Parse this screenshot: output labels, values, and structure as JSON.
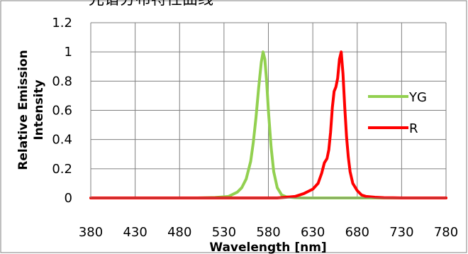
{
  "page_title": "光谱分布特性曲线",
  "chart_data": {
    "type": "line",
    "xlabel": "Wavelength  [nm]",
    "ylabel": "Relative Emission Intensity",
    "ylabel_lines": [
      "Relative Emission",
      "Intensity"
    ],
    "xlim": [
      380,
      780
    ],
    "ylim": [
      0,
      1.2
    ],
    "x_ticks": [
      "380",
      "430",
      "480",
      "530",
      "580",
      "630",
      "680",
      "730",
      "780"
    ],
    "y_ticks": [
      "0",
      "0.2",
      "0.4",
      "0.6",
      "0.8",
      "1",
      "1.2"
    ],
    "grid": true,
    "legend_position": "right",
    "series": [
      {
        "name": "YG",
        "color": "#92D050",
        "x": [
          380,
          500,
          520,
          535,
          545,
          550,
          555,
          560,
          563,
          566,
          569,
          572,
          574,
          576,
          578,
          580,
          583,
          586,
          590,
          595,
          600,
          610,
          620,
          780
        ],
        "y": [
          0,
          0,
          0.003,
          0.01,
          0.04,
          0.07,
          0.13,
          0.25,
          0.38,
          0.55,
          0.75,
          0.93,
          1.0,
          0.95,
          0.8,
          0.6,
          0.35,
          0.18,
          0.07,
          0.02,
          0.008,
          0.002,
          0,
          0
        ]
      },
      {
        "name": "R",
        "color": "#FF0000",
        "x": [
          380,
          590,
          600,
          610,
          620,
          630,
          636,
          640,
          643,
          646,
          648,
          650,
          652,
          654,
          656,
          658,
          660,
          662,
          664,
          666,
          668,
          670,
          672,
          675,
          680,
          685,
          690,
          700,
          710,
          720,
          730,
          780
        ],
        "y": [
          0,
          0,
          0.005,
          0.01,
          0.03,
          0.06,
          0.1,
          0.17,
          0.24,
          0.27,
          0.33,
          0.45,
          0.62,
          0.73,
          0.76,
          0.82,
          0.95,
          1.0,
          0.85,
          0.62,
          0.42,
          0.28,
          0.18,
          0.1,
          0.05,
          0.02,
          0.01,
          0.005,
          0.002,
          0.001,
          0,
          0
        ]
      }
    ]
  }
}
